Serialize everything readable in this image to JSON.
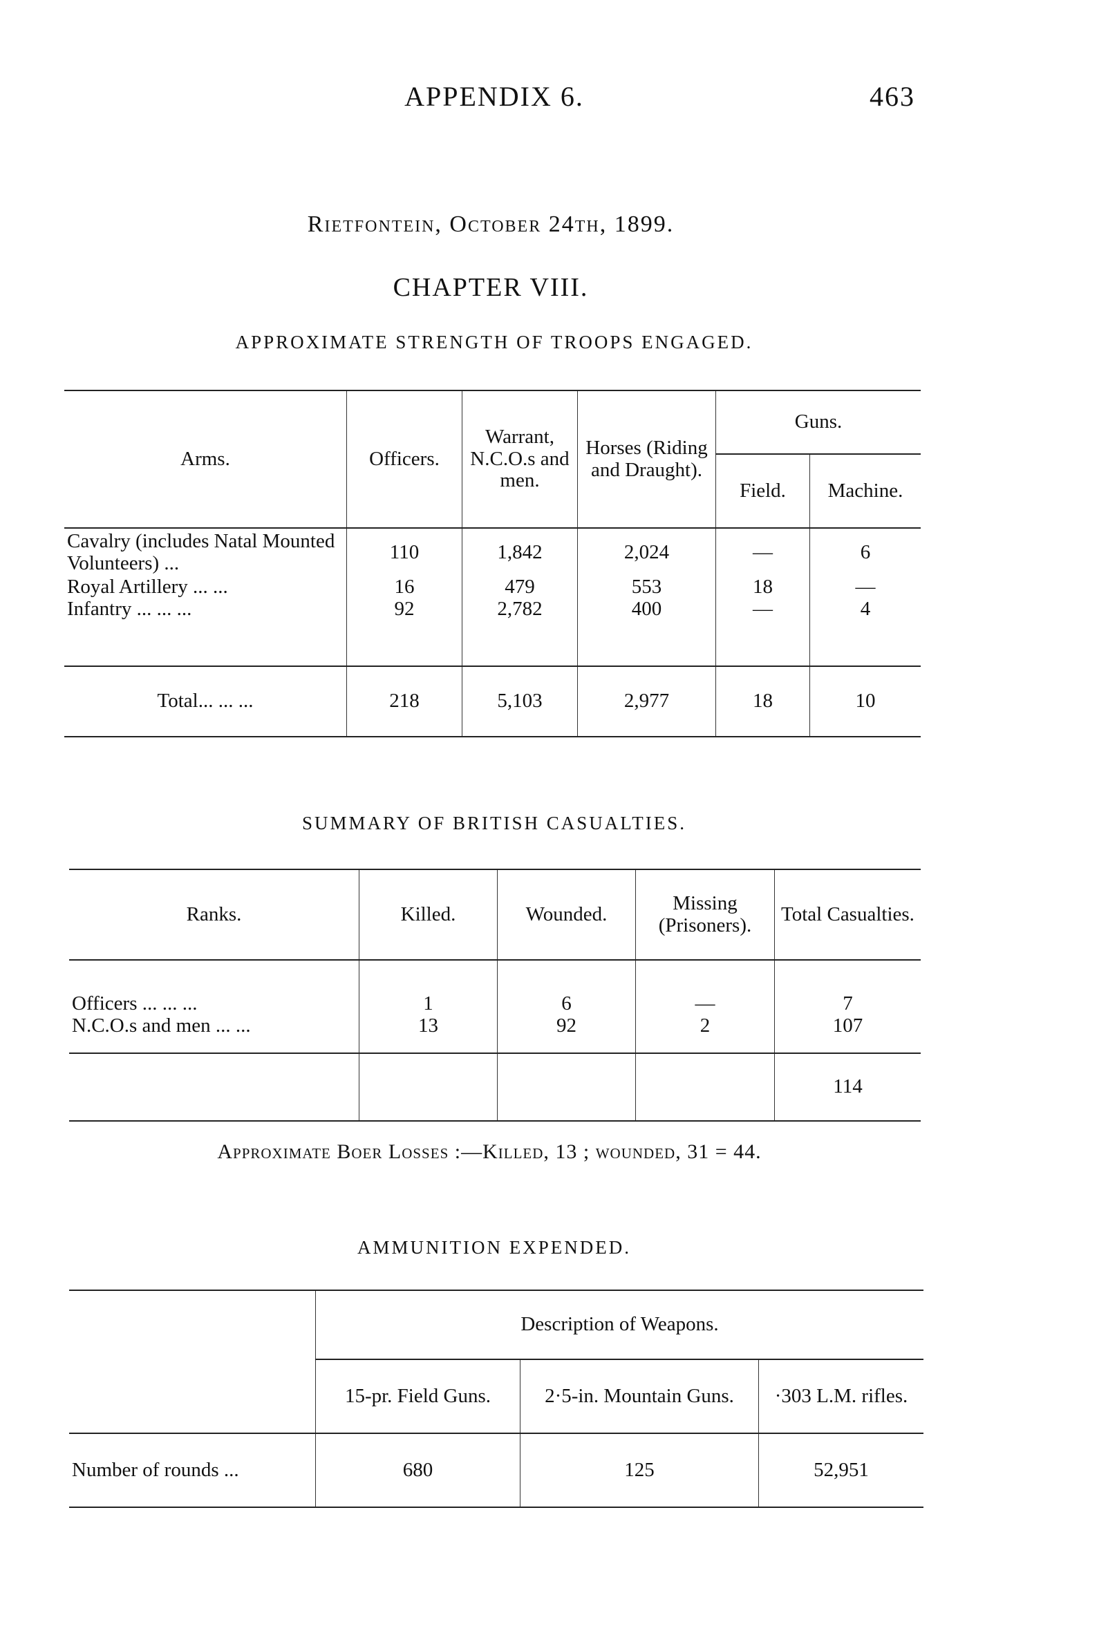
{
  "header": {
    "title": "APPENDIX 6.",
    "page_number": "463"
  },
  "section_title": "Rietfontein, October 24th, 1899.",
  "chapter": "CHAPTER VIII.",
  "strength": {
    "title": "APPROXIMATE STRENGTH OF TROOPS ENGAGED.",
    "headers": {
      "arms": "Arms.",
      "officers": "Officers.",
      "warrant": "Warrant, N.C.O.s and men.",
      "horses": "Horses (Riding and Draught).",
      "guns": "Guns.",
      "field": "Field.",
      "machine": "Machine."
    },
    "rows": [
      {
        "arms": "Cavalry (includes Natal Mounted Volunteers) ...",
        "officers": "110",
        "warrant": "1,842",
        "horses": "2,024",
        "field": "—",
        "machine": "6"
      },
      {
        "arms": "Royal Artillery ... ...",
        "officers": "16",
        "warrant": "479",
        "horses": "553",
        "field": "18",
        "machine": "—"
      },
      {
        "arms": "Infantry ... ... ...",
        "officers": "92",
        "warrant": "2,782",
        "horses": "400",
        "field": "—",
        "machine": "4"
      }
    ],
    "total": {
      "label": "Total... ... ...",
      "officers": "218",
      "warrant": "5,103",
      "horses": "2,977",
      "field": "18",
      "machine": "10"
    }
  },
  "casualties": {
    "title": "SUMMARY OF BRITISH CASUALTIES.",
    "headers": {
      "ranks": "Ranks.",
      "killed": "Killed.",
      "wounded": "Wounded.",
      "missing": "Missing (Prisoners).",
      "total": "Total Casualties."
    },
    "rows": [
      {
        "ranks": "Officers ... ... ...",
        "killed": "1",
        "wounded": "6",
        "missing": "—",
        "total": "7"
      },
      {
        "ranks": "N.C.O.s and men ... ...",
        "killed": "13",
        "wounded": "92",
        "missing": "2",
        "total": "107"
      }
    ],
    "grand_total": "114"
  },
  "boer_losses": "Approximate Boer Losses :—Killed, 13 ; wounded, 31 = 44.",
  "ammunition": {
    "title": "AMMUNITION EXPENDED.",
    "description_header": "Description of Weapons.",
    "weapons": [
      "15-pr. Field Guns.",
      "2·5-in. Mountain Guns.",
      "·303 L.M. rifles."
    ],
    "row_label": "Number of rounds ...",
    "values": [
      "680",
      "125",
      "52,951"
    ]
  }
}
